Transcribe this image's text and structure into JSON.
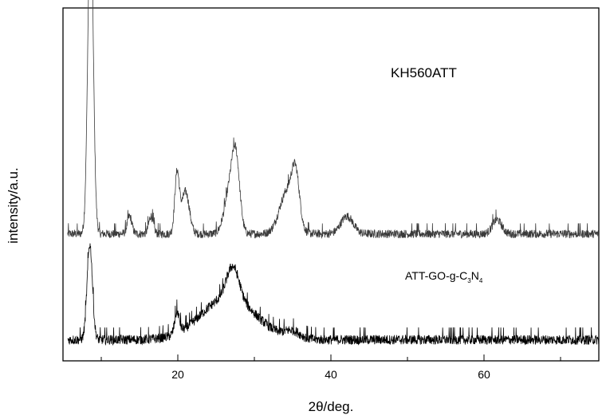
{
  "chart_data": {
    "type": "line",
    "title": "",
    "xlabel": "2θ/deg.",
    "ylabel": "intensity/a.u.",
    "xlim": [
      5,
      75
    ],
    "xticks": [
      20,
      40,
      60
    ],
    "grid": false,
    "y_ticks_shown": false,
    "series": [
      {
        "name": "KH560ATT",
        "label_text": "KH560ATT",
        "color": "#3a3a3a",
        "baseline": 0.36,
        "noise": 0.012,
        "peaks": [
          {
            "x": 8.6,
            "height": 0.92,
            "width": 0.35
          },
          {
            "x": 13.7,
            "height": 0.05,
            "width": 0.3
          },
          {
            "x": 16.5,
            "height": 0.05,
            "width": 0.3
          },
          {
            "x": 19.9,
            "height": 0.17,
            "width": 0.3
          },
          {
            "x": 21.0,
            "height": 0.12,
            "width": 0.5
          },
          {
            "x": 26.8,
            "height": 0.12,
            "width": 0.7
          },
          {
            "x": 27.6,
            "height": 0.18,
            "width": 0.5
          },
          {
            "x": 34.3,
            "height": 0.12,
            "width": 1.0
          },
          {
            "x": 35.4,
            "height": 0.13,
            "width": 0.5
          },
          {
            "x": 42.1,
            "height": 0.05,
            "width": 0.8
          },
          {
            "x": 61.7,
            "height": 0.04,
            "width": 0.6
          }
        ]
      },
      {
        "name": "ATT-GO-g-C3N4",
        "label_text": "ATT-GO-g-C",
        "label_sub1": "3",
        "label_mid": "N",
        "label_sub2": "4",
        "color": "#000000",
        "baseline": 0.06,
        "noise": 0.014,
        "peaks": [
          {
            "x": 8.5,
            "height": 0.27,
            "width": 0.35
          },
          {
            "x": 19.9,
            "height": 0.06,
            "width": 0.3
          },
          {
            "x": 26.6,
            "height": 0.12,
            "width": 3.5
          },
          {
            "x": 27.2,
            "height": 0.09,
            "width": 0.8
          },
          {
            "x": 35.0,
            "height": 0.02,
            "width": 1.0
          }
        ]
      }
    ]
  }
}
